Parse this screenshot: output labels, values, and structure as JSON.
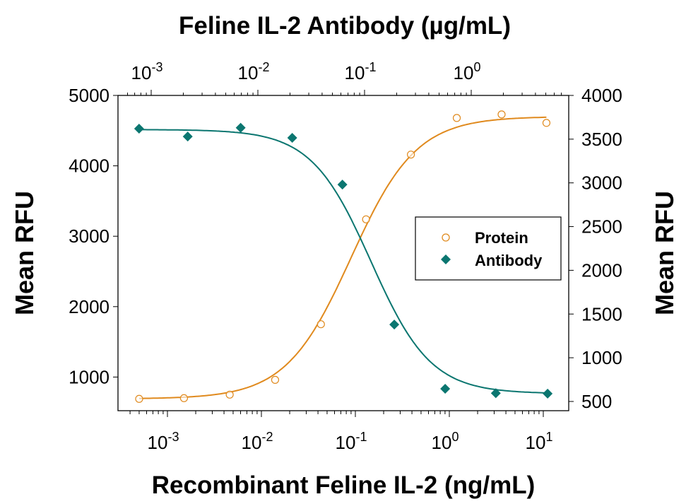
{
  "chart_data": {
    "type": "scatter",
    "title": "",
    "top_xlabel": "Feline IL-2 Antibody (µg/mL)",
    "xlabel": "Recombinant Feline IL-2 (ng/mL)",
    "ylabel": "Mean RFU",
    "y2label": "Mean RFU",
    "xscale": "log",
    "x_ticks": [
      "10^-3",
      "10^-2",
      "10^-1",
      "10^0",
      "10^1"
    ],
    "top_x_ticks": [
      "10^-3",
      "10^-2",
      "10^-1",
      "10^0"
    ],
    "y_ticks": [
      1000,
      2000,
      3000,
      4000,
      5000
    ],
    "y2_ticks": [
      500,
      1000,
      1500,
      2000,
      2500,
      3000,
      3500,
      4000
    ],
    "ylim": [
      550,
      5000
    ],
    "y2lim": [
      450,
      4000
    ],
    "grid": false,
    "legend_position": "center-right",
    "series": [
      {
        "name": "Protein",
        "marker": "open-circle",
        "color": "#E08A1E",
        "axis": "left/bottom",
        "x": [
          0.0005,
          0.0015,
          0.0046,
          0.014,
          0.043,
          0.13,
          0.39,
          1.2,
          3.6,
          10.8
        ],
        "y": [
          690,
          700,
          750,
          960,
          1750,
          3240,
          4160,
          4680,
          4730,
          4610
        ],
        "fit": "4PL sigmoid (increasing)"
      },
      {
        "name": "Antibody",
        "marker": "filled-diamond",
        "color": "#0B7670",
        "axis": "right/top",
        "x": [
          0.00077,
          0.0022,
          0.0069,
          0.021,
          0.062,
          0.19,
          0.57,
          1.7,
          5.2
        ],
        "y": [
          3620,
          3530,
          3630,
          3515,
          2980,
          1380,
          645,
          595,
          590
        ],
        "fit": "4PL sigmoid (decreasing)"
      }
    ]
  },
  "labels": {
    "top_title": "Feline IL-2 Antibody (µg/mL)",
    "bottom_title": "Recombinant Feline IL-2 (ng/mL)",
    "left_ylabel": "Mean RFU",
    "right_ylabel": "Mean RFU",
    "legend_protein": "Protein",
    "legend_antibody": "Antibody"
  }
}
